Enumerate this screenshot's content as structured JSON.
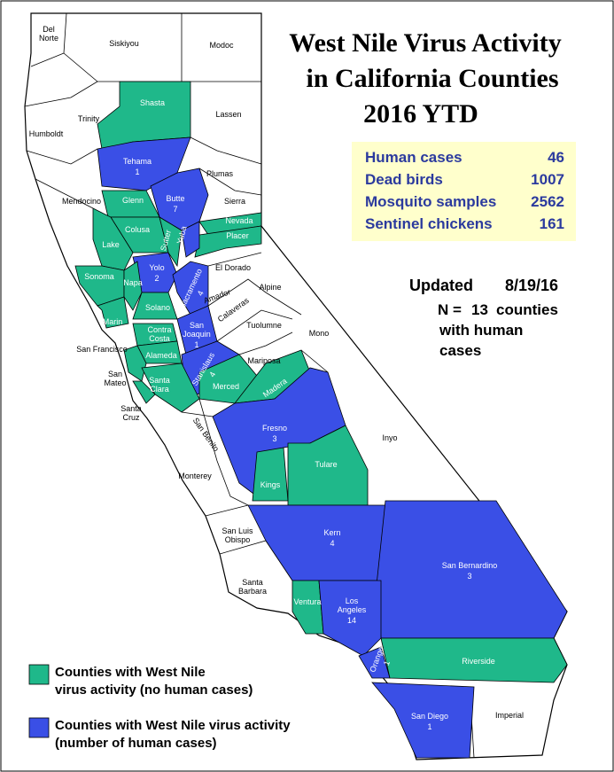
{
  "header": {
    "title": [
      "West Nile Virus Activity",
      "in California Counties",
      "2016 YTD"
    ]
  },
  "stats": [
    {
      "label": "Human cases",
      "value": 46
    },
    {
      "label": "Dead birds",
      "value": 1007
    },
    {
      "label": "Mosquito samples",
      "value": 2562
    },
    {
      "label": "Sentinel chickens",
      "value": 161
    }
  ],
  "updated": {
    "label": "Updated",
    "date": "8/19/16"
  },
  "n_note": {
    "prefix": "N =",
    "count": 13,
    "text": [
      "counties",
      "with human",
      "cases"
    ]
  },
  "legend": [
    {
      "status": "activity",
      "color": "#1fb88a",
      "text": [
        "Counties with West Nile",
        "virus activity (no human cases)"
      ]
    },
    {
      "status": "human",
      "color": "#3a4fe6",
      "text": [
        "Counties with West Nile virus activity",
        "(number of human cases)"
      ]
    }
  ],
  "counties": [
    {
      "name": [
        "Del",
        "Norte"
      ],
      "status": "none"
    },
    {
      "name": [
        "Siskiyou"
      ],
      "status": "none"
    },
    {
      "name": [
        "Modoc"
      ],
      "status": "none"
    },
    {
      "name": [
        "Humboldt"
      ],
      "status": "none"
    },
    {
      "name": [
        "Trinity"
      ],
      "status": "none"
    },
    {
      "name": [
        "Shasta"
      ],
      "status": "activity"
    },
    {
      "name": [
        "Lassen"
      ],
      "status": "none"
    },
    {
      "name": [
        "Tehama"
      ],
      "status": "human",
      "cases": 1
    },
    {
      "name": [
        "Plumas"
      ],
      "status": "none"
    },
    {
      "name": [
        "Mendocino"
      ],
      "status": "none"
    },
    {
      "name": [
        "Glenn"
      ],
      "status": "activity"
    },
    {
      "name": [
        "Butte"
      ],
      "status": "human",
      "cases": 7
    },
    {
      "name": [
        "Sierra"
      ],
      "status": "none"
    },
    {
      "name": [
        "Nevada"
      ],
      "status": "activity"
    },
    {
      "name": [
        "Placer"
      ],
      "status": "activity"
    },
    {
      "name": [
        "Colusa"
      ],
      "status": "activity"
    },
    {
      "name": [
        "Sutter"
      ],
      "status": "activity"
    },
    {
      "name": [
        "Yuba"
      ],
      "status": "human"
    },
    {
      "name": [
        "Lake"
      ],
      "status": "activity"
    },
    {
      "name": [
        "El Dorado"
      ],
      "status": "none"
    },
    {
      "name": [
        "Sonoma"
      ],
      "status": "activity"
    },
    {
      "name": [
        "Yolo"
      ],
      "status": "human",
      "cases": 2
    },
    {
      "name": [
        "Napa"
      ],
      "status": "activity"
    },
    {
      "name": [
        "Sacramento"
      ],
      "status": "human",
      "cases": 4
    },
    {
      "name": [
        "Alpine"
      ],
      "status": "none"
    },
    {
      "name": [
        "Amador"
      ],
      "status": "none"
    },
    {
      "name": [
        "Calaveras"
      ],
      "status": "none"
    },
    {
      "name": [
        "Solano"
      ],
      "status": "activity"
    },
    {
      "name": [
        "Marin"
      ],
      "status": "activity"
    },
    {
      "name": [
        "Tuolumne"
      ],
      "status": "none"
    },
    {
      "name": [
        "Mono"
      ],
      "status": "none"
    },
    {
      "name": [
        "San Francisco"
      ],
      "status": "none"
    },
    {
      "name": [
        "Contra",
        "Costa"
      ],
      "status": "activity"
    },
    {
      "name": [
        "San",
        "Joaquin"
      ],
      "status": "human",
      "cases": 1
    },
    {
      "name": [
        "Alameda"
      ],
      "status": "activity"
    },
    {
      "name": [
        "Stanislaus"
      ],
      "status": "human",
      "cases": 4
    },
    {
      "name": [
        "Mariposa"
      ],
      "status": "none"
    },
    {
      "name": [
        "San",
        "Mateo"
      ],
      "status": "activity"
    },
    {
      "name": [
        "Santa",
        "Clara"
      ],
      "status": "activity"
    },
    {
      "name": [
        "Merced"
      ],
      "status": "activity"
    },
    {
      "name": [
        "Madera"
      ],
      "status": "activity"
    },
    {
      "name": [
        "Santa",
        "Cruz"
      ],
      "status": "activity"
    },
    {
      "name": [
        "Fresno"
      ],
      "status": "human",
      "cases": 3
    },
    {
      "name": [
        "San Benito"
      ],
      "status": "none"
    },
    {
      "name": [
        "Inyo"
      ],
      "status": "none"
    },
    {
      "name": [
        "Tulare"
      ],
      "status": "activity"
    },
    {
      "name": [
        "Monterey"
      ],
      "status": "none"
    },
    {
      "name": [
        "Kings"
      ],
      "status": "activity"
    },
    {
      "name": [
        "San Luis",
        "Obispo"
      ],
      "status": "none"
    },
    {
      "name": [
        "Kern"
      ],
      "status": "human",
      "cases": 4
    },
    {
      "name": [
        "San Bernardino"
      ],
      "status": "human",
      "cases": 3
    },
    {
      "name": [
        "Santa",
        "Barbara"
      ],
      "status": "none"
    },
    {
      "name": [
        "Ventura"
      ],
      "status": "activity"
    },
    {
      "name": [
        "Los",
        "Angeles"
      ],
      "status": "human",
      "cases": 14
    },
    {
      "name": [
        "Orange"
      ],
      "status": "human",
      "cases": 1
    },
    {
      "name": [
        "Riverside"
      ],
      "status": "activity"
    },
    {
      "name": [
        "San Diego"
      ],
      "status": "human",
      "cases": 1
    },
    {
      "name": [
        "Imperial"
      ],
      "status": "none"
    }
  ]
}
